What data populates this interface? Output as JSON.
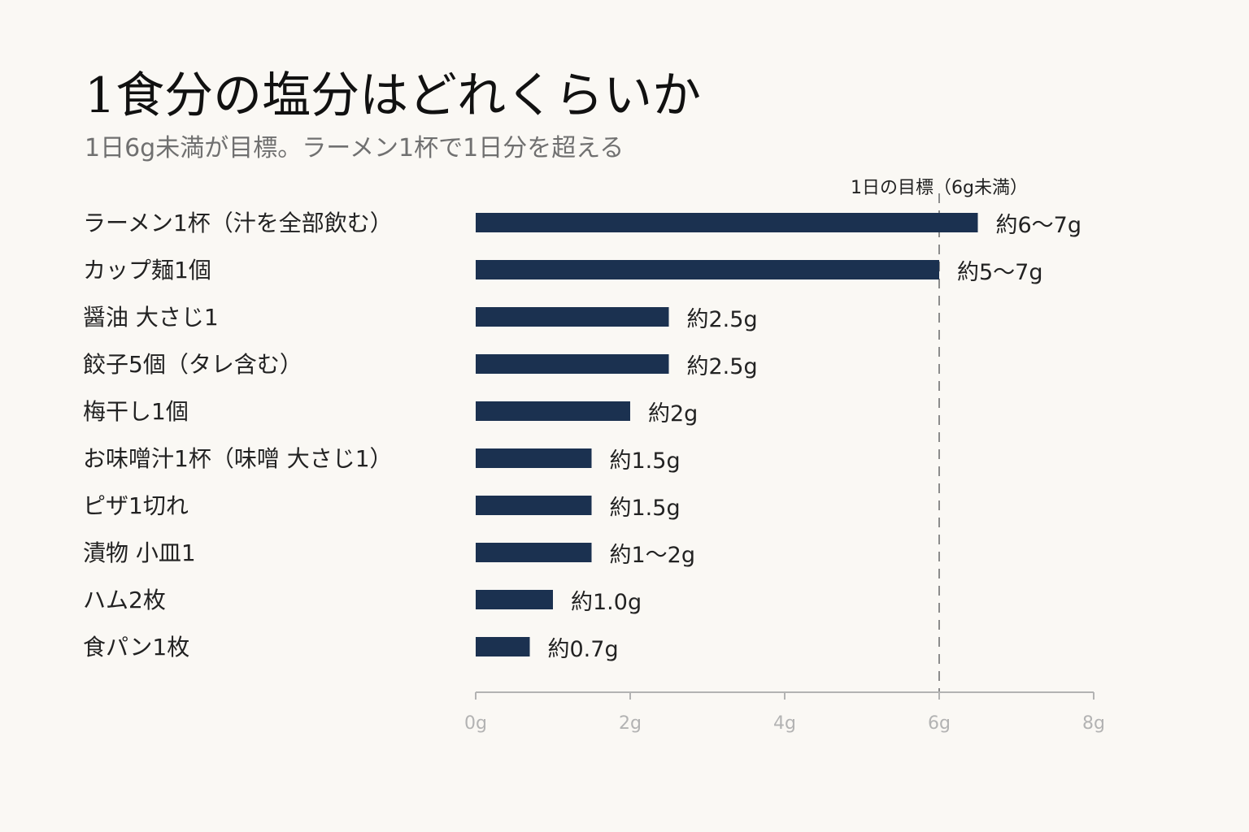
{
  "header": {
    "title": "1食分の塩分はどれくらいか",
    "subtitle": "1日6g未満が目標。ラーメン1杯で1日分を超える"
  },
  "colors": {
    "background": "#faf8f4",
    "bar": "#1b3150",
    "axis": "#b3b3b3",
    "reference_line": "#8c8c8c"
  },
  "chart_data": {
    "type": "bar",
    "orientation": "horizontal",
    "categories": [
      "ラーメン1杯（汁を全部飲む）",
      "カップ麺1個",
      "醤油 大さじ1",
      "餃子5個（タレ含む）",
      "梅干し1個",
      "お味噌汁1杯（味噌 大さじ1）",
      "ピザ1切れ",
      "漬物 小皿1",
      "ハム2枚",
      "食パン1枚"
    ],
    "values": [
      6.5,
      6.0,
      2.5,
      2.5,
      2.0,
      1.5,
      1.5,
      1.5,
      1.0,
      0.7
    ],
    "value_labels": [
      "約6〜7g",
      "約5〜7g",
      "約2.5g",
      "約2.5g",
      "約2g",
      "約1.5g",
      "約1.5g",
      "約1〜2g",
      "約1.0g",
      "約0.7g"
    ],
    "xlim": [
      0,
      8
    ],
    "x_ticks": [
      0,
      2,
      4,
      6,
      8
    ],
    "x_tick_labels": [
      "0g",
      "2g",
      "4g",
      "6g",
      "8g"
    ],
    "reference_line": {
      "value": 6,
      "label": "1日の目標（6g未満）",
      "style": "dashed"
    },
    "grid": false,
    "legend": "none"
  }
}
